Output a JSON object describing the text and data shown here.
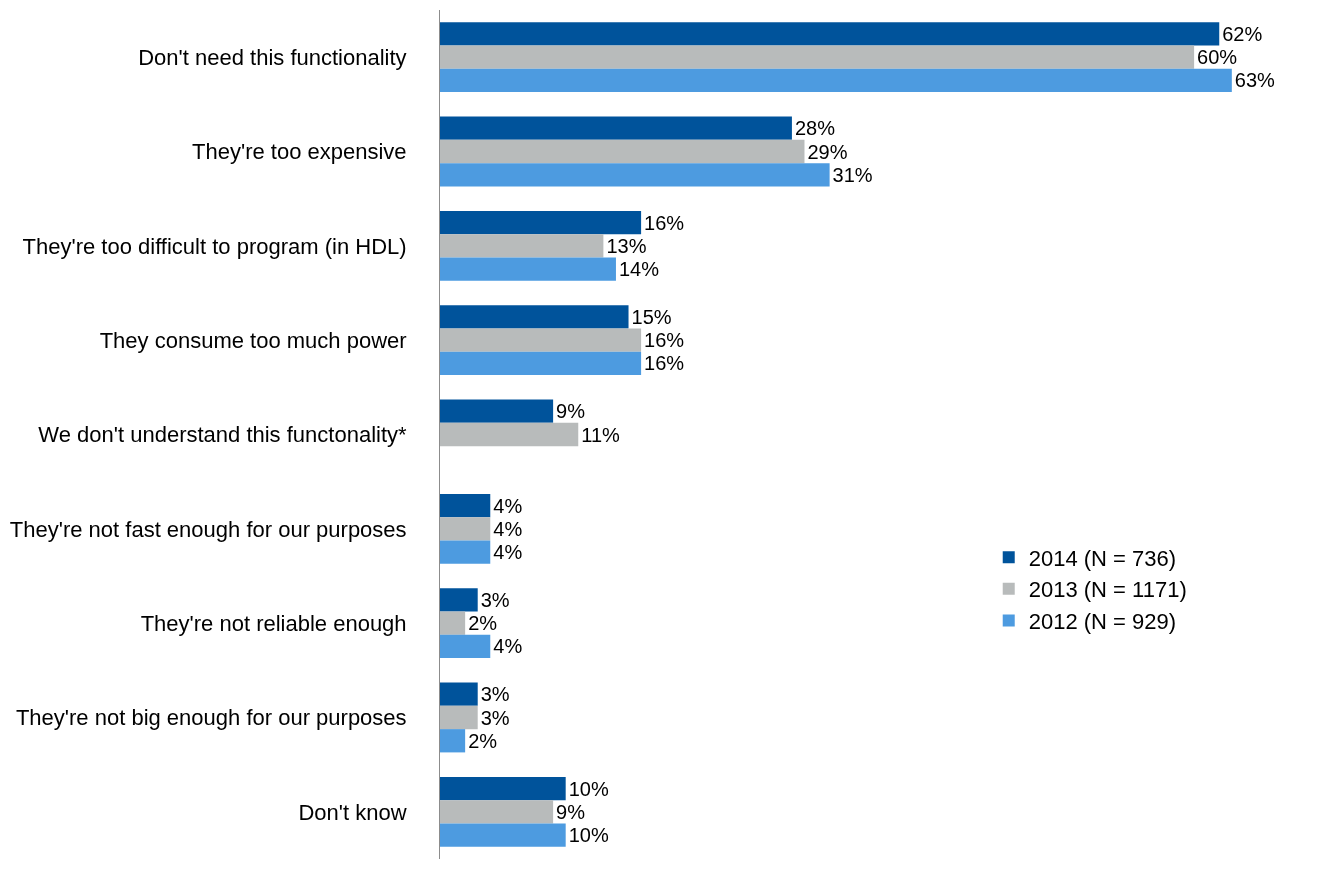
{
  "chart_data": {
    "type": "bar",
    "orientation": "horizontal",
    "categories": [
      "Don't need this functionality",
      "They're too expensive",
      "They're too difficult to program (in HDL)",
      "They consume too much power",
      "We don't understand this functonality*",
      "They're not fast enough for our purposes",
      "They're not reliable enough",
      "They're not big enough for our purposes",
      "Don't know"
    ],
    "series": [
      {
        "name": "2014 (N = 736)",
        "color": "#00539b",
        "values": [
          62,
          28,
          16,
          15,
          9,
          4,
          3,
          3,
          10
        ],
        "value_labels": [
          "62%",
          "28%",
          "16%",
          "15%",
          "9%",
          "4%",
          "3%",
          "3%",
          "10%"
        ]
      },
      {
        "name": "2013 (N = 1171)",
        "color": "#b8bbbb",
        "values": [
          60,
          29,
          13,
          16,
          11,
          4,
          2,
          3,
          9
        ],
        "value_labels": [
          "60%",
          "29%",
          "13%",
          "16%",
          "11%",
          "4%",
          "2%",
          "3%",
          "9%"
        ]
      },
      {
        "name": "2012 (N = 929)",
        "color": "#4d9be0",
        "values": [
          63,
          31,
          14,
          16,
          null,
          4,
          4,
          2,
          10
        ],
        "value_labels": [
          "63%",
          "31%",
          "14%",
          "16%",
          null,
          "4%",
          "4%",
          "2%",
          "10%"
        ]
      }
    ],
    "legend": "right",
    "tick_labels": "y"
  }
}
